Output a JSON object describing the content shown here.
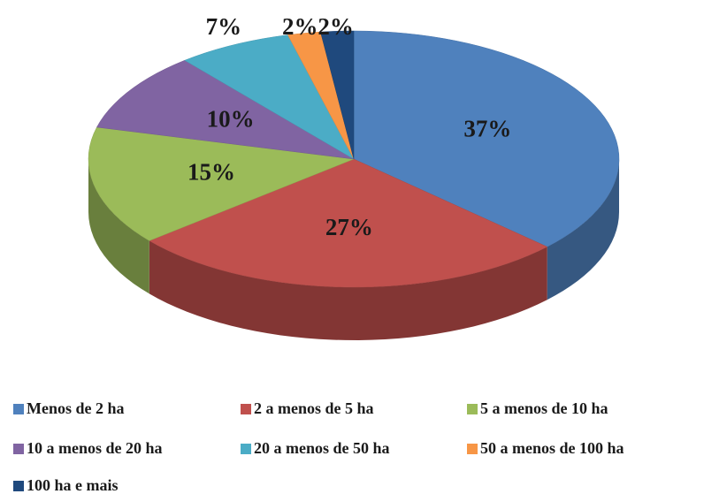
{
  "chart_data": {
    "type": "pie",
    "categories": [
      "Menos de 2 ha",
      "2 a menos de 5 ha",
      "5 a menos de 10 ha",
      "10 a menos de 20 ha",
      "20 a menos de 50 ha",
      "50 a menos de 100 ha",
      "100 ha e mais"
    ],
    "values": [
      37,
      27,
      15,
      10,
      7,
      2,
      2
    ],
    "value_labels": [
      "37%",
      "27%",
      "15%",
      "10%",
      "7%",
      "2%",
      "2%"
    ],
    "colors": [
      "#4f81bd",
      "#c0504d",
      "#9bbb59",
      "#8064a2",
      "#4bacc6",
      "#f79646",
      "#1f497d"
    ],
    "legend": "bottom"
  }
}
